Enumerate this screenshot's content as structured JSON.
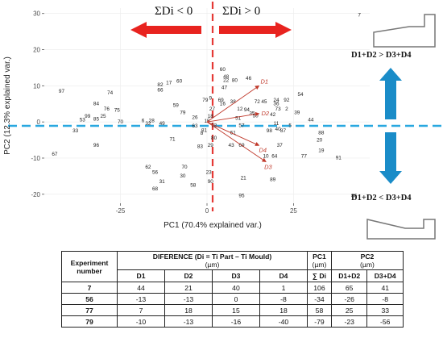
{
  "chart_data": {
    "type": "scatter",
    "title": "",
    "xlabel": "PC1 (70.4% explained var.)",
    "ylabel": "PC2 (12.3% explained var.)",
    "xlim": [
      -47,
      47
    ],
    "ylim": [
      -22.5,
      31.5
    ],
    "xticks": [
      -25,
      0,
      25
    ],
    "yticks": [
      -20,
      -10,
      0,
      10,
      20,
      30
    ],
    "grid": true,
    "points": [
      {
        "label": "7",
        "x": 44,
        "y": 29.5
      },
      {
        "label": "97",
        "x": -42,
        "y": 8.5
      },
      {
        "label": "74",
        "x": -28,
        "y": 8
      },
      {
        "label": "84",
        "x": -32,
        "y": 5
      },
      {
        "label": "75",
        "x": -26,
        "y": 3.2
      },
      {
        "label": "76",
        "x": -29,
        "y": 3.5
      },
      {
        "label": "99",
        "x": -34.5,
        "y": 1.5
      },
      {
        "label": "25",
        "x": -30,
        "y": 1.5
      },
      {
        "label": "85",
        "x": -32,
        "y": 0.8
      },
      {
        "label": "53",
        "x": -36,
        "y": 0.5
      },
      {
        "label": "70",
        "x": -25,
        "y": 0
      },
      {
        "label": "33",
        "x": -38,
        "y": -2.5
      },
      {
        "label": "32",
        "x": -17,
        "y": -0.5
      },
      {
        "label": "49",
        "x": -13,
        "y": -0.5
      },
      {
        "label": "96",
        "x": -32,
        "y": -6.5
      },
      {
        "label": "67",
        "x": -44,
        "y": -9
      },
      {
        "label": "82",
        "x": -13.5,
        "y": 10.2
      },
      {
        "label": "66",
        "x": -13.5,
        "y": 8.8
      },
      {
        "label": "60",
        "x": -8,
        "y": 11.2
      },
      {
        "label": "17",
        "x": -11,
        "y": 10.8
      },
      {
        "label": "59",
        "x": -9,
        "y": 4.5
      },
      {
        "label": "79",
        "x": -7,
        "y": 2.5
      },
      {
        "label": "6",
        "x": -18.5,
        "y": 0.3
      },
      {
        "label": "28",
        "x": -16,
        "y": 0.3
      },
      {
        "label": "71",
        "x": -10,
        "y": -4.8
      },
      {
        "label": "62",
        "x": -17,
        "y": -12.5
      },
      {
        "label": "56",
        "x": -15,
        "y": -14
      },
      {
        "label": "31",
        "x": -13,
        "y": -16.5
      },
      {
        "label": "68",
        "x": -15,
        "y": -18.5
      },
      {
        "label": "70",
        "x": -6.5,
        "y": -12.5
      },
      {
        "label": "30",
        "x": -7,
        "y": -15
      },
      {
        "label": "58",
        "x": -4,
        "y": -17.5
      },
      {
        "label": "23",
        "x": 0.5,
        "y": -14
      },
      {
        "label": "21",
        "x": 10.5,
        "y": -15.5
      },
      {
        "label": "90",
        "x": 1,
        "y": -16.5
      },
      {
        "label": "95",
        "x": 10,
        "y": -20.5
      },
      {
        "label": "27",
        "x": 1.5,
        "y": 3.5
      },
      {
        "label": "26",
        "x": -3.5,
        "y": 1.2
      },
      {
        "label": "18",
        "x": 1,
        "y": 1.5
      },
      {
        "label": "15",
        "x": 0,
        "y": 0.2
      },
      {
        "label": "63",
        "x": -3.5,
        "y": -1.2
      },
      {
        "label": "81",
        "x": -0.8,
        "y": -2.4
      },
      {
        "label": "8",
        "x": -1.5,
        "y": -3.2
      },
      {
        "label": "83",
        "x": -2,
        "y": -6.8
      },
      {
        "label": "72",
        "x": 2,
        "y": -1
      },
      {
        "label": "80",
        "x": 2,
        "y": -4.5
      },
      {
        "label": "29",
        "x": 1,
        "y": -6.5
      },
      {
        "label": "60",
        "x": 4.5,
        "y": 14.5
      },
      {
        "label": "48",
        "x": 5.5,
        "y": 12.5
      },
      {
        "label": "22",
        "x": 5.5,
        "y": 11.5
      },
      {
        "label": "46",
        "x": 12,
        "y": 12
      },
      {
        "label": "80",
        "x": 8,
        "y": 11.5
      },
      {
        "label": "47",
        "x": 5,
        "y": 9.5
      },
      {
        "label": "38",
        "x": 7.5,
        "y": 5.5
      },
      {
        "label": "12",
        "x": 9.5,
        "y": 3.5
      },
      {
        "label": "69",
        "x": 4,
        "y": 6
      },
      {
        "label": "79",
        "x": -0.5,
        "y": 6
      },
      {
        "label": "16",
        "x": 4.5,
        "y": 5
      },
      {
        "label": "9",
        "x": 1,
        "y": 6.5
      },
      {
        "label": "51",
        "x": 9,
        "y": 1
      },
      {
        "label": "61",
        "x": 7.5,
        "y": -3
      },
      {
        "label": "57",
        "x": 10,
        "y": -1
      },
      {
        "label": "43",
        "x": 7,
        "y": -6.5
      },
      {
        "label": "69",
        "x": 10,
        "y": -6.5
      },
      {
        "label": "94",
        "x": 11.5,
        "y": 3.3
      },
      {
        "label": "35",
        "x": 13,
        "y": 2.3
      },
      {
        "label": "50",
        "x": 14,
        "y": 1.6
      },
      {
        "label": "72",
        "x": 14.5,
        "y": 5.5
      },
      {
        "label": "45",
        "x": 16.5,
        "y": 5.5
      },
      {
        "label": "24",
        "x": 20,
        "y": 6
      },
      {
        "label": "36",
        "x": 20,
        "y": 5
      },
      {
        "label": "54",
        "x": 27,
        "y": 7.5
      },
      {
        "label": "92",
        "x": 23,
        "y": 6
      },
      {
        "label": "73",
        "x": 20.5,
        "y": 3.5
      },
      {
        "label": "2",
        "x": 23,
        "y": 3.5
      },
      {
        "label": "39",
        "x": 26,
        "y": 2.5
      },
      {
        "label": "44",
        "x": 30,
        "y": 0.5
      },
      {
        "label": "5",
        "x": 24,
        "y": -1
      },
      {
        "label": "42",
        "x": 19,
        "y": 2
      },
      {
        "label": "11",
        "x": 20,
        "y": -0.5
      },
      {
        "label": "40",
        "x": 20.5,
        "y": -2
      },
      {
        "label": "87",
        "x": 22,
        "y": -2.5
      },
      {
        "label": "37",
        "x": 21,
        "y": -6.5
      },
      {
        "label": "98",
        "x": 18,
        "y": -2.5
      },
      {
        "label": "10",
        "x": 17,
        "y": -9.5
      },
      {
        "label": "64",
        "x": 19.5,
        "y": -9.5
      },
      {
        "label": "89",
        "x": 19,
        "y": -16
      },
      {
        "label": "77",
        "x": 28,
        "y": -9.5
      },
      {
        "label": "88",
        "x": 33,
        "y": -3
      },
      {
        "label": "20",
        "x": 32.5,
        "y": -5
      },
      {
        "label": "19",
        "x": 33,
        "y": -8
      },
      {
        "label": "91",
        "x": 38,
        "y": -10
      },
      {
        "label": "86",
        "x": 42.5,
        "y": -20.5
      }
    ],
    "loadings": [
      {
        "name": "D1",
        "x": 15,
        "y": 10
      },
      {
        "name": "D2",
        "x": 15,
        "y": 2.3
      },
      {
        "name": "D3",
        "x": 17,
        "y": -11
      },
      {
        "name": "D4",
        "x": 15,
        "y": -6.5
      }
    ],
    "reference_lines": {
      "vertical_at": 0,
      "horizontal_at": 0
    }
  },
  "annotations": {
    "left_sign": "ΣDi < 0",
    "right_sign": "ΣDi > 0",
    "top_right": "D1+D2 > D3+D4",
    "bottom_right": "D1+D2 < D3+D4"
  },
  "colors": {
    "red_arrow": "#e8231f",
    "blue_arrow": "#1a8cc8",
    "dashed_vertical": "#e53935",
    "dashed_horizontal": "#29a8e0",
    "loading_arrow": "#c0392b"
  },
  "table": {
    "header": {
      "experiment": "Experiment number",
      "difference": "DIFERENCE (Di = Ti Part – Ti Mould)",
      "difference_unit": "(µm)",
      "pc1": "PC1",
      "pc1_unit": "(µm)",
      "pc2": "PC2",
      "pc2_unit": "(µm)"
    },
    "subheader": [
      "D1",
      "D2",
      "D3",
      "D4",
      "∑ Di",
      "D1+D2",
      "D3+D4"
    ],
    "rows": [
      [
        "7",
        "44",
        "21",
        "40",
        "1",
        "106",
        "65",
        "41"
      ],
      [
        "56",
        "-13",
        "-13",
        "0",
        "-8",
        "-34",
        "-26",
        "-8"
      ],
      [
        "77",
        "7",
        "18",
        "15",
        "18",
        "58",
        "25",
        "33"
      ],
      [
        "79",
        "-10",
        "-13",
        "-16",
        "-40",
        "-79",
        "-23",
        "-56"
      ]
    ]
  }
}
